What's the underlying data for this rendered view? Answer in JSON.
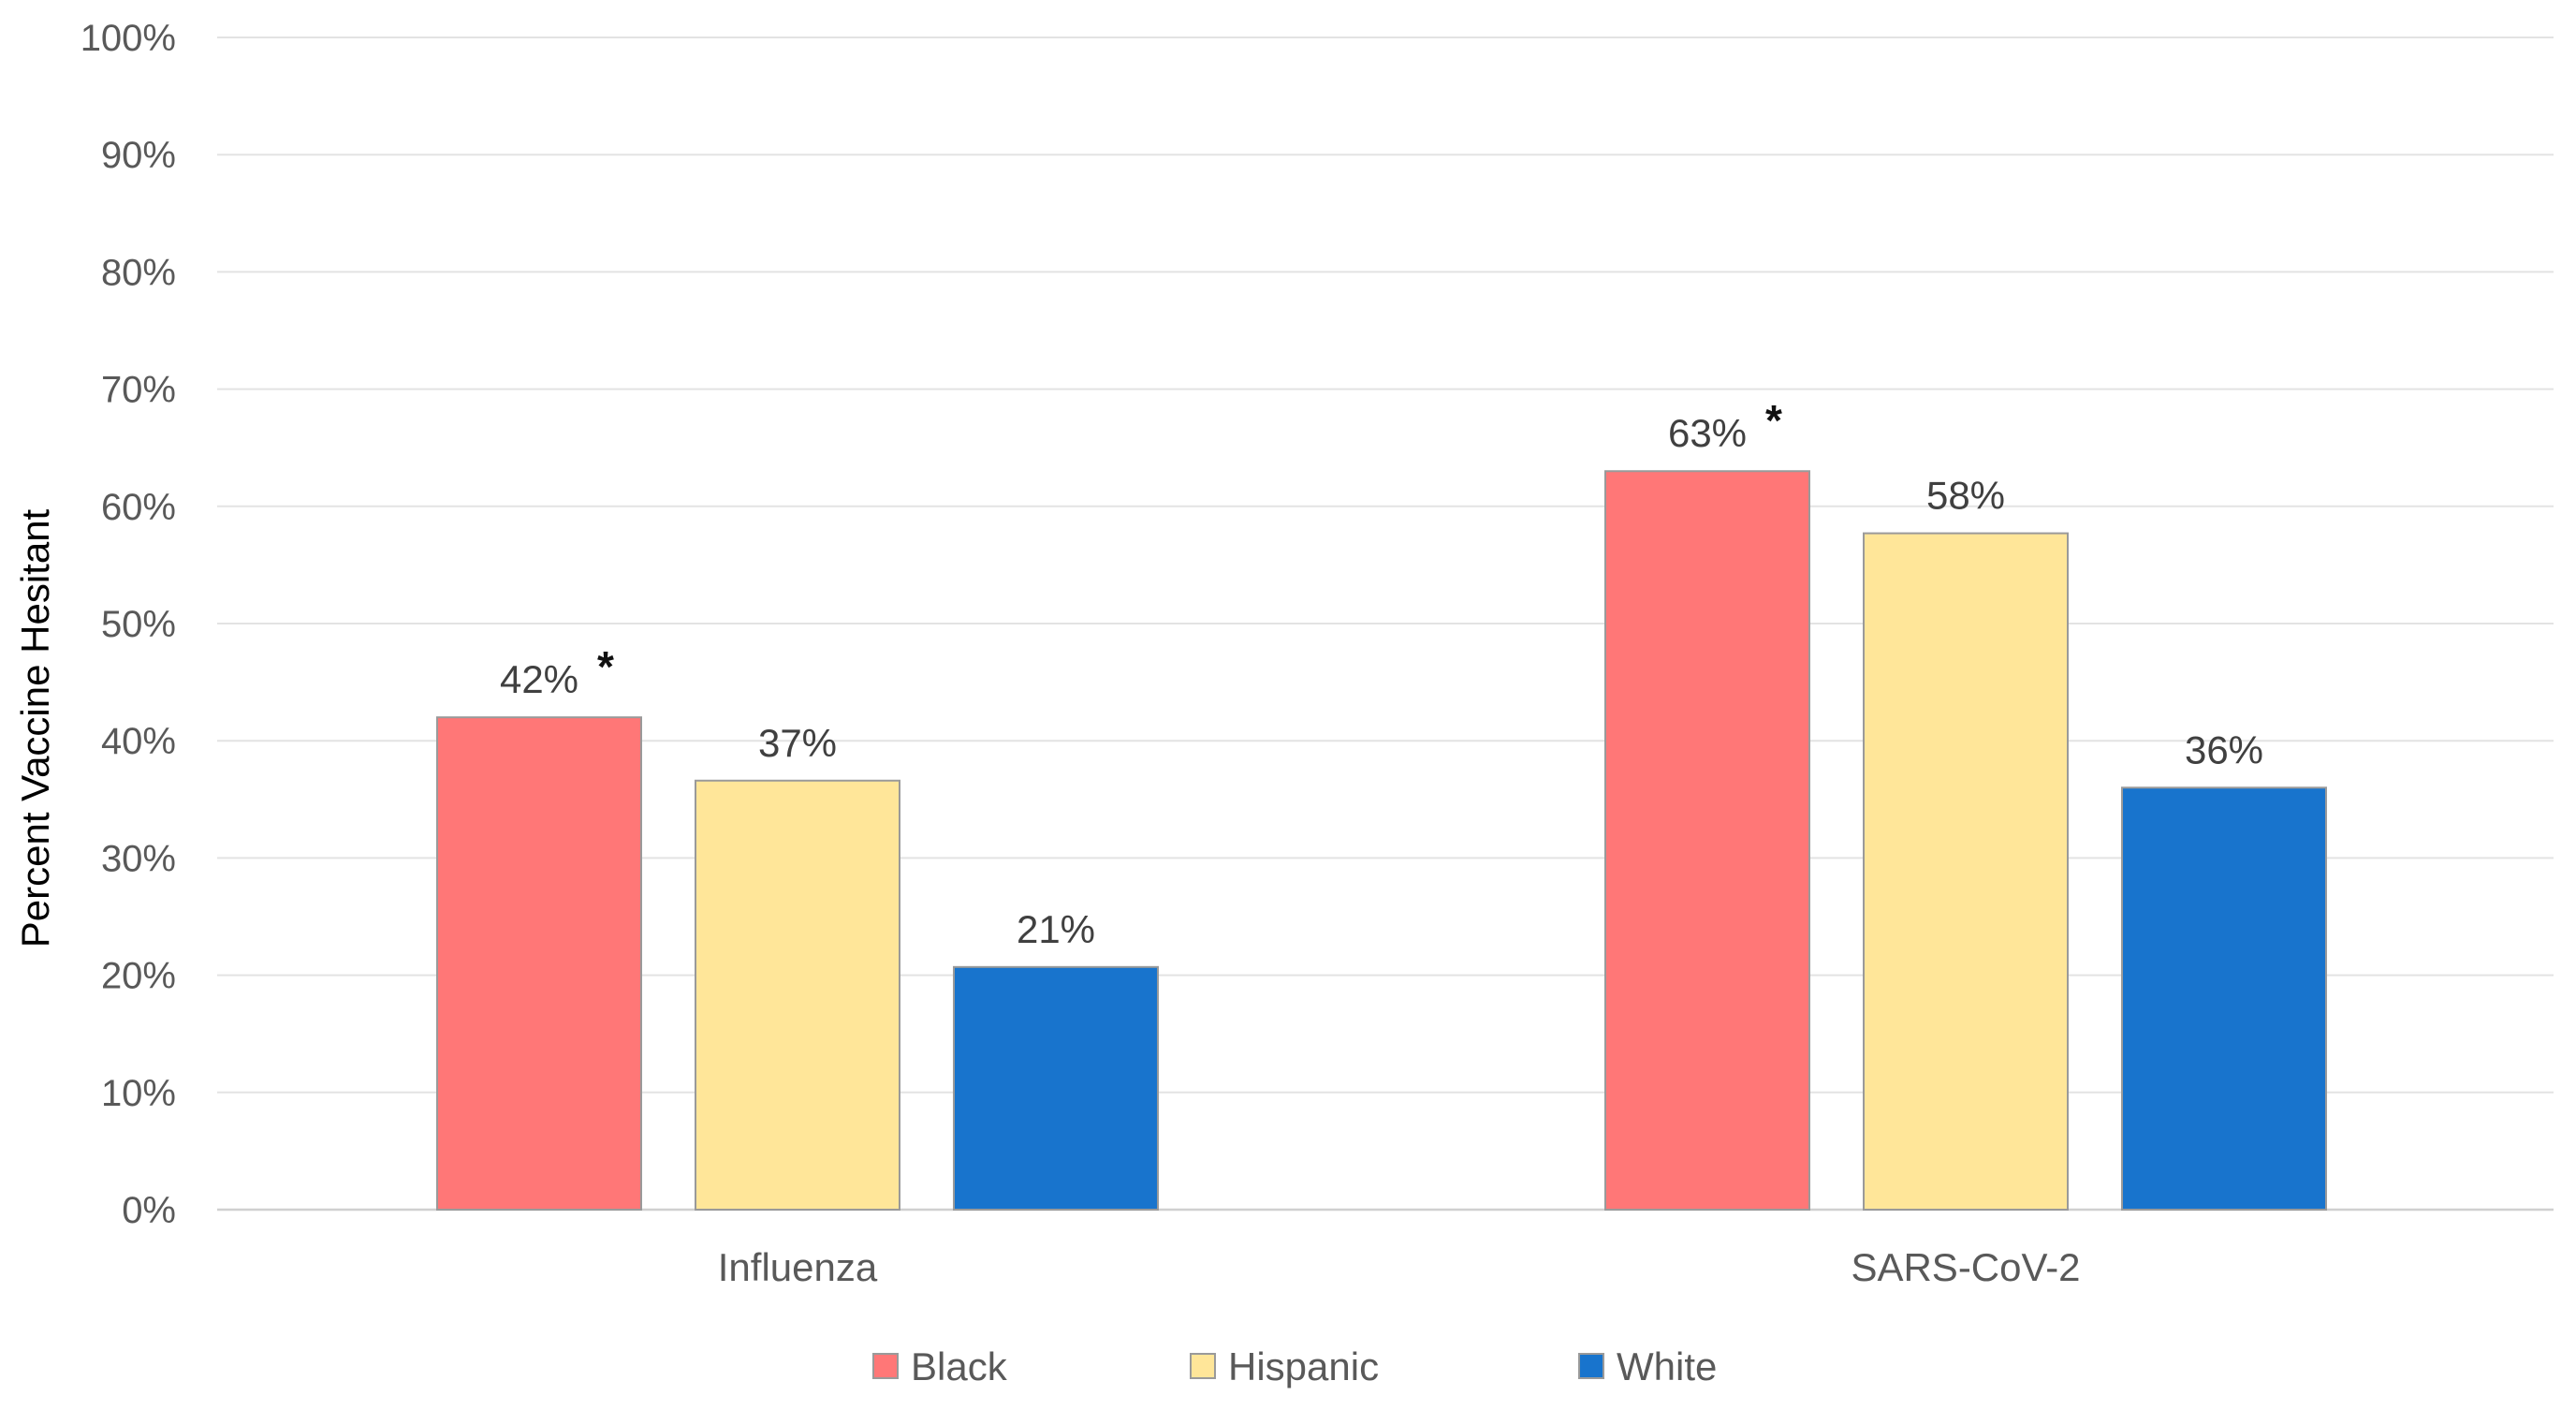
{
  "chart_data": {
    "type": "bar",
    "title": "",
    "xlabel": "",
    "ylabel": "Percent Vaccine Hesitant",
    "ylim": [
      0,
      100
    ],
    "yticks": [
      "0%",
      "10%",
      "20%",
      "30%",
      "40%",
      "50%",
      "60%",
      "70%",
      "80%",
      "90%",
      "100%"
    ],
    "grid": true,
    "legend_position": "bottom",
    "categories": [
      "Influenza",
      "SARS-CoV-2"
    ],
    "series": [
      {
        "name": "Black",
        "color": "#FF7777",
        "values": [
          42,
          63
        ],
        "labels": [
          "42%",
          "63%"
        ],
        "significance": [
          "*",
          "*"
        ]
      },
      {
        "name": "Hispanic",
        "color": "#FFE699",
        "values": [
          36.6,
          57.7
        ],
        "labels": [
          "37%",
          "58%"
        ],
        "significance": [
          "",
          ""
        ]
      },
      {
        "name": "White",
        "color": "#1874CD",
        "values": [
          20.7,
          36
        ],
        "labels": [
          "21%",
          "36%"
        ],
        "significance": [
          "",
          ""
        ]
      }
    ]
  }
}
